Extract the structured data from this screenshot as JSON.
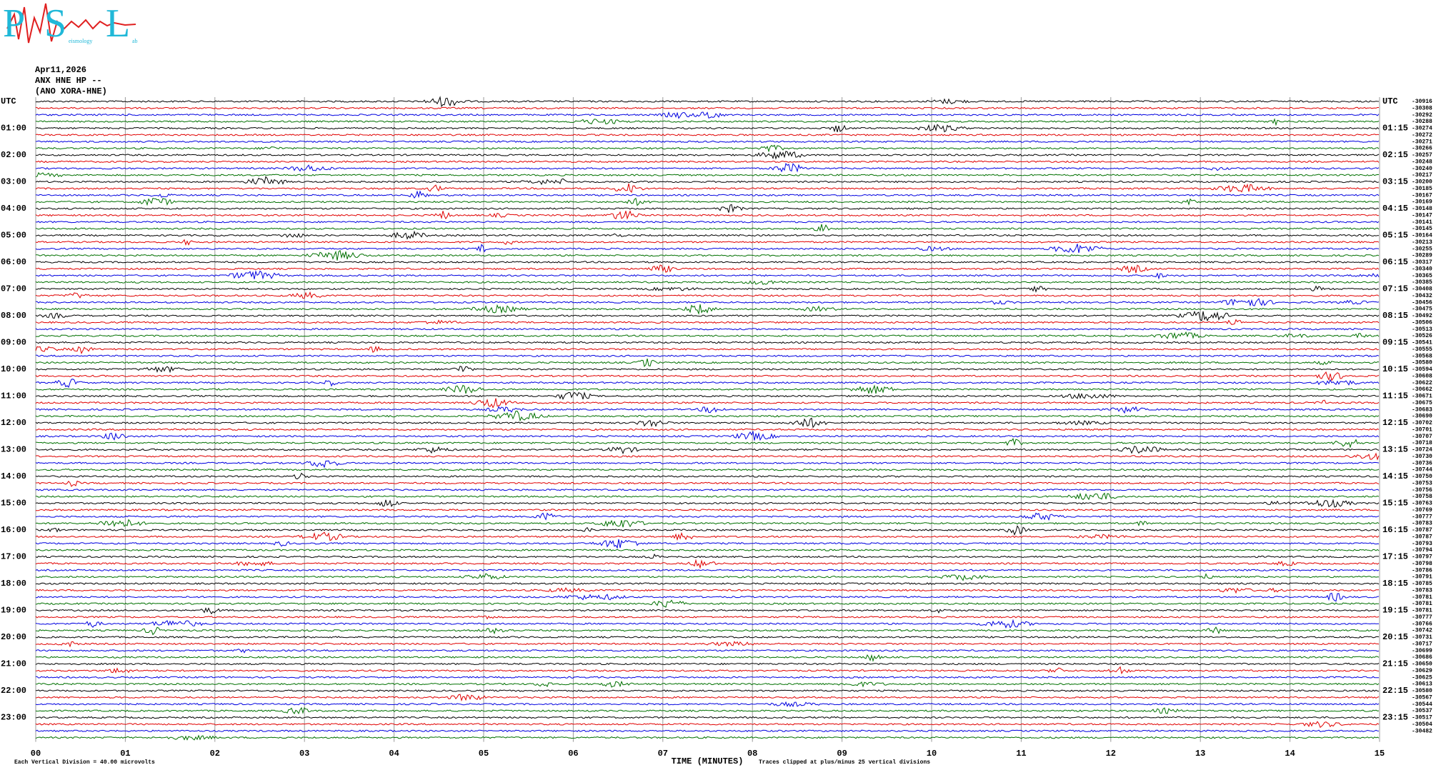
{
  "header": {
    "logo": {
      "letters": [
        "P",
        "S",
        "L"
      ],
      "small": [
        "eismology",
        "ab"
      ]
    }
  },
  "chart_data": {
    "type": "helicorder",
    "date": "Apr11,2026",
    "station": "ANX HNE HP --",
    "channel": "(ANO XORA-HNE)",
    "left_labels": [
      "UTC",
      "01:00",
      "02:00",
      "03:00",
      "04:00",
      "05:00",
      "06:00",
      "07:00",
      "08:00",
      "09:00",
      "10:00",
      "11:00",
      "12:00",
      "13:00",
      "14:00",
      "15:00",
      "16:00",
      "17:00",
      "18:00",
      "19:00",
      "20:00",
      "21:00",
      "22:00",
      "23:00"
    ],
    "right_labels": [
      "UTC",
      "01:15",
      "02:15",
      "03:15",
      "04:15",
      "05:15",
      "06:15",
      "07:15",
      "08:15",
      "09:15",
      "10:15",
      "11:15",
      "12:15",
      "13:15",
      "14:15",
      "15:15",
      "16:15",
      "17:15",
      "18:15",
      "19:15",
      "20:15",
      "21:15",
      "22:15",
      "23:15"
    ],
    "offsets": [
      -30916,
      -30308,
      -30292,
      -30288,
      -30274,
      -30272,
      -30271,
      -30266,
      -30257,
      -30248,
      -30240,
      -30217,
      -30200,
      -30185,
      -30167,
      -30169,
      -30148,
      -30147,
      -30141,
      -30145,
      -30164,
      -30213,
      -30255,
      -30289,
      -30317,
      -30340,
      -30365,
      -30385,
      -30408,
      -30432,
      -30456,
      -30475,
      -30492,
      -30506,
      -30513,
      -30526,
      -30541,
      -30555,
      -30568,
      -30580,
      -30594,
      -30608,
      -30622,
      -30662,
      -30671,
      -30675,
      -30683,
      -30690,
      -30702,
      -30701,
      -30707,
      -30718,
      -30724,
      -30730,
      -30736,
      -30744,
      -30750,
      -30753,
      -30756,
      -30758,
      -30763,
      -30769,
      -30777,
      -30783,
      -30787,
      -30787,
      -30793,
      -30794,
      -30797,
      -30798,
      -30786,
      -30791,
      -30785,
      -30783,
      -30781,
      -30781,
      -30781,
      -30777,
      -30766,
      -30742,
      -30731,
      -30717,
      -30699,
      -30686,
      -30650,
      -30629,
      -30625,
      -30613,
      -30580,
      -30567,
      -30544,
      -30537,
      -30517,
      -30504,
      -30482
    ],
    "xlim": [
      0,
      15
    ],
    "xticks": [
      {
        "value": 0,
        "label": "00"
      },
      {
        "value": 1,
        "label": "01"
      },
      {
        "value": 2,
        "label": "02"
      },
      {
        "value": 3,
        "label": "03"
      },
      {
        "value": 4,
        "label": "04"
      },
      {
        "value": 5,
        "label": "05"
      },
      {
        "value": 6,
        "label": "06"
      },
      {
        "value": 7,
        "label": "07"
      },
      {
        "value": 8,
        "label": "08"
      },
      {
        "value": 9,
        "label": "09"
      },
      10,
      11,
      12,
      13,
      14,
      15
    ],
    "xlabel": "TIME (MINUTES)",
    "scale_note": "Each Vertical Division =   40.00 microvolts",
    "clip_note": "Traces clipped at plus/minus 25 vertical divisions",
    "trace_colors": [
      "#000000",
      "#e00000",
      "#0000e0",
      "#007000"
    ],
    "grid": true
  }
}
